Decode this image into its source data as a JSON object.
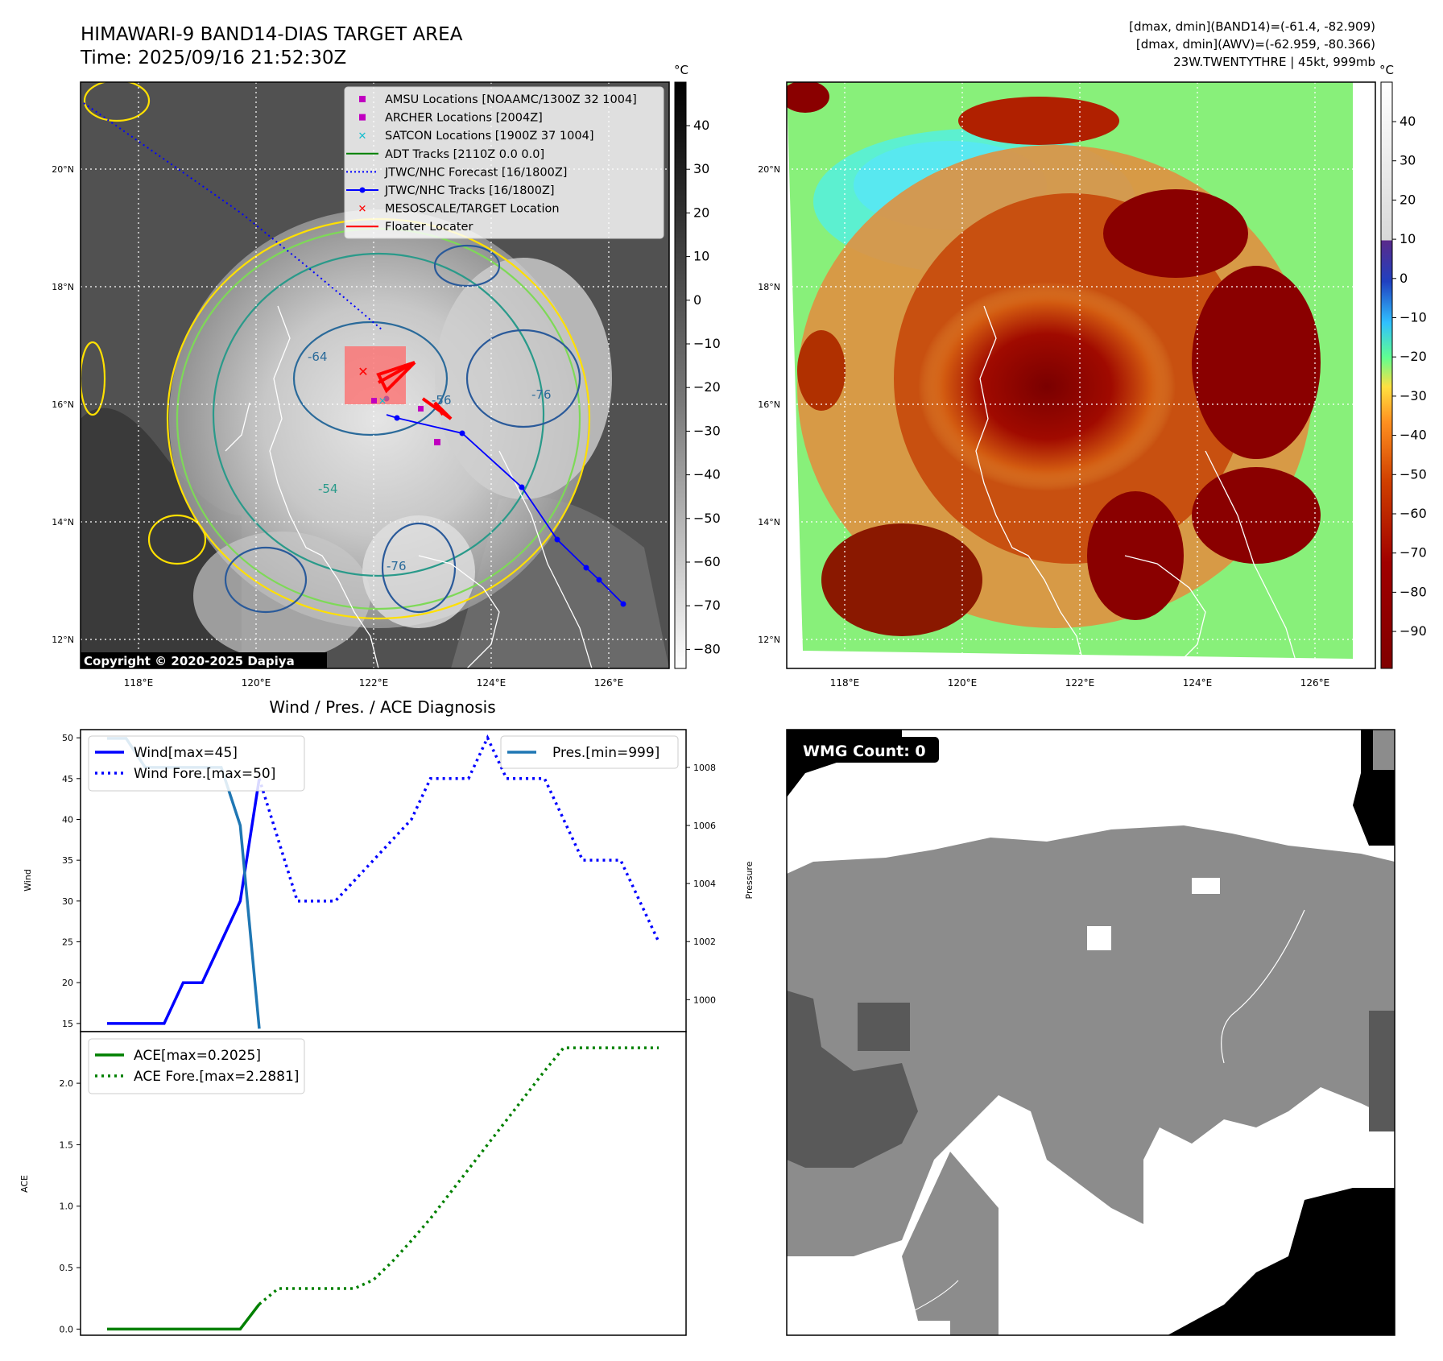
{
  "header": {
    "title": "HIMAWARI-9 BAND14-DIAS TARGET AREA",
    "time": "Time: 2025/09/16 21:52:30Z",
    "info_line1": "[dmax, dmin](BAND14)=(-61.4, -82.909)",
    "info_line2": "[dmax, dmin](AWV)=(-62.959, -80.366)",
    "info_line3": "23W.TWENTYTHRE | 45kt, 999mb"
  },
  "map_axes": {
    "lat_labels": [
      "20°N",
      "18°N",
      "16°N",
      "14°N",
      "12°N"
    ],
    "lon_labels": [
      "118°E",
      "120°E",
      "122°E",
      "124°E",
      "126°E"
    ],
    "cbar_unit": "°C"
  },
  "ir_panel": {
    "copyright": "Copyright © 2020-2025 Dapiya",
    "colorbar_ticks": [
      "40",
      "30",
      "20",
      "10",
      "0",
      "−10",
      "−20",
      "−30",
      "−40",
      "−50",
      "−60",
      "−70",
      "−80"
    ],
    "contour_labels": [
      "-64",
      "-54",
      "-76",
      "-76",
      "-56"
    ],
    "legend": [
      {
        "label": "AMSU Locations [NOAAMC/1300Z 32 1004]",
        "marker": "square",
        "color": "#c000c0"
      },
      {
        "label": "ARCHER Locations [2004Z]",
        "marker": "square",
        "color": "#c000c0"
      },
      {
        "label": "SATCON Locations [1900Z 37 1004]",
        "marker": "x",
        "color": "#17becf"
      },
      {
        "label": "ADT Tracks [2110Z 0.0 0.0]",
        "marker": "line",
        "color": "#008000"
      },
      {
        "label": "JTWC/NHC Forecast [16/1800Z]",
        "marker": "dotted",
        "color": "#0000ff"
      },
      {
        "label": "JTWC/NHC Tracks [16/1800Z]",
        "marker": "line-dot",
        "color": "#0000ff"
      },
      {
        "label": "MESOSCALE/TARGET Location",
        "marker": "x",
        "color": "#ff0000"
      },
      {
        "label": "Floater Locater",
        "marker": "line",
        "color": "#ff0000"
      }
    ]
  },
  "wv_panel": {
    "colorbar_ticks": [
      "40",
      "30",
      "20",
      "10",
      "0",
      "−10",
      "−20",
      "−30",
      "−40",
      "−50",
      "−60",
      "−70",
      "−80",
      "−90"
    ]
  },
  "wmg_panel": {
    "label": "WMG Count: 0"
  },
  "chart_data": [
    {
      "type": "line",
      "title": "Wind / Pres. / ACE Diagnosis",
      "ylabel": "Wind",
      "ylabel_right": "Pressure",
      "ylim": [
        14,
        51
      ],
      "ylim_right": [
        998.9,
        1009.3
      ],
      "yticks": [
        15,
        20,
        25,
        30,
        35,
        40,
        45,
        50
      ],
      "yticks_right": [
        1000,
        1002,
        1004,
        1006,
        1008
      ],
      "series": [
        {
          "name": "Wind[max=45]",
          "color": "#0000ff",
          "style": "solid",
          "values": [
            15,
            15,
            15,
            15,
            20,
            20,
            25,
            30,
            45
          ]
        },
        {
          "name": "Wind Fore.[max=50]",
          "color": "#0000ff",
          "style": "dotted",
          "values": [
            45,
            37.5,
            30,
            30,
            30,
            32.5,
            35,
            37.5,
            40,
            45,
            45,
            45,
            50,
            45,
            45,
            45,
            40,
            35,
            35,
            35,
            30,
            25
          ]
        },
        {
          "name": "Pres.[min=999]",
          "color": "#1f77b4",
          "style": "solid",
          "values": [
            1009,
            1009,
            1008,
            1008,
            1008,
            1008,
            1008,
            1006,
            999
          ]
        }
      ]
    },
    {
      "type": "line",
      "ylabel": "ACE",
      "ylim": [
        -0.05,
        2.42
      ],
      "yticks": [
        0.0,
        0.5,
        1.0,
        1.5,
        2.0
      ],
      "series": [
        {
          "name": "ACE[max=0.2025]",
          "color": "#008000",
          "style": "solid",
          "values": [
            0,
            0,
            0,
            0,
            0,
            0,
            0,
            0.0,
            0.2025
          ]
        },
        {
          "name": "ACE Fore.[max=2.2881]",
          "color": "#008000",
          "style": "dotted",
          "values": [
            0.2025,
            0.33,
            0.33,
            0.33,
            0.33,
            0.33,
            0.4,
            0.55,
            0.72,
            0.9,
            1.1,
            1.3,
            1.5,
            1.7,
            1.9,
            2.1,
            2.2881,
            2.2881,
            2.2881,
            2.2881,
            2.2881,
            2.2881
          ]
        }
      ]
    }
  ]
}
